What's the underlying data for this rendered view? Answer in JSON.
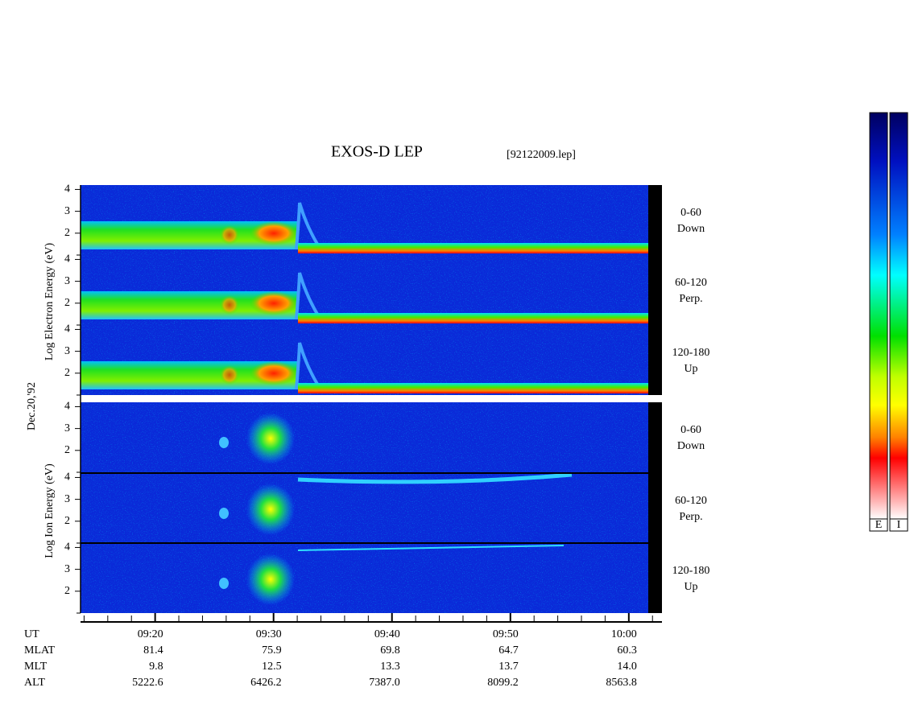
{
  "title": "EXOS-D LEP",
  "file": "[92122009.lep]",
  "date": "Dec.20,'92",
  "electron_label": "Log Electron Energy (eV)",
  "ion_label": "Log Ion Energy (eV)",
  "panel_ylim": [
    1,
    4.2
  ],
  "panel_yticks": [
    2,
    3,
    4
  ],
  "pitch_angles": [
    {
      "range": "0-60",
      "dir": "Down"
    },
    {
      "range": "60-120",
      "dir": "Perp."
    },
    {
      "range": "120-180",
      "dir": "Up"
    }
  ],
  "time_axis": {
    "xlim": [
      553.7,
      602.8
    ],
    "ticks": [
      {
        "value": 560,
        "label": "09:20"
      },
      {
        "value": 570,
        "label": "09:30"
      },
      {
        "value": 580,
        "label": "09:40"
      },
      {
        "value": 590,
        "label": "09:50"
      },
      {
        "value": 600,
        "label": "10:00"
      }
    ]
  },
  "ut_label": "UT",
  "ephemeris": [
    {
      "label": "MLAT",
      "values": [
        "81.4",
        "75.9",
        "69.8",
        "64.7",
        "60.3"
      ]
    },
    {
      "label": "MLT",
      "values": [
        "9.8",
        "12.5",
        "13.3",
        "13.7",
        "14.0"
      ]
    },
    {
      "label": "ALT",
      "values": [
        "5222.6",
        "6426.2",
        "7387.0",
        "8099.2",
        "8563.8"
      ]
    }
  ],
  "colorbar_labels": [
    "E",
    "I"
  ]
}
